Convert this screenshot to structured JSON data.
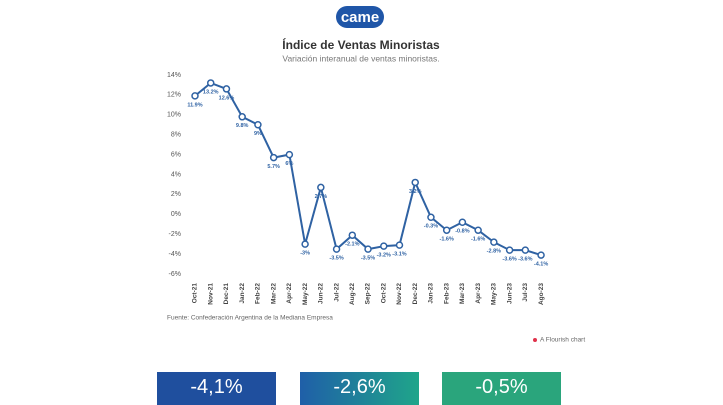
{
  "logo": "came",
  "chart_data": {
    "type": "line",
    "title": "Índice de Ventas Minoristas",
    "subtitle": "Variación interanual de ventas minoristas.",
    "source": "Fuente: Confederación Argentina de la Mediana Empresa",
    "credit": "A Flourish chart",
    "categories": [
      "Oct-21",
      "Nov-21",
      "Dec-21",
      "Jan-22",
      "Feb-22",
      "Mar-22",
      "Apr-22",
      "May-22",
      "Jun-22",
      "Jul-22",
      "Aug-22",
      "Sep-22",
      "Oct-22",
      "Nov-22",
      "Dec-22",
      "Jan-23",
      "Feb-23",
      "Mar-23",
      "Apr-23",
      "May-23",
      "Jun-23",
      "Jul-23",
      "Ago-23"
    ],
    "values": [
      11.9,
      13.2,
      12.6,
      9.8,
      9,
      5.7,
      6,
      -3,
      2.7,
      -3.5,
      -2.1,
      -3.5,
      -3.2,
      -3.1,
      3.2,
      -0.3,
      -1.6,
      -0.8,
      -1.6,
      -2.8,
      -3.6,
      -3.6,
      -4.1
    ],
    "value_labels": [
      "11.9%",
      "13.2%",
      "12.6%",
      "9.8%",
      "9%",
      "5.7%",
      "6%",
      "-3%",
      "2.7%",
      "-3.5%",
      "-2.1%",
      "-3.5%",
      "-3.2%",
      "-3.1%",
      "3.2%",
      "-0.3%",
      "-1.6%",
      "-0.8%",
      "-1.6%",
      "-2.8%",
      "-3.6%",
      "-3.6%",
      "-4.1%"
    ],
    "color": "#2f62a3",
    "ylim": [
      -6,
      14
    ],
    "yticks": [
      {
        "value": 14,
        "label": "14%"
      },
      {
        "value": 12,
        "label": "12%"
      },
      {
        "value": 10,
        "label": "10%"
      },
      {
        "value": 8,
        "label": "8%"
      },
      {
        "value": 6,
        "label": "6%"
      },
      {
        "value": 4,
        "label": "4%"
      },
      {
        "value": 2,
        "label": "2%"
      },
      {
        "value": 0,
        "label": "0%"
      },
      {
        "value": -2,
        "label": "-2%"
      },
      {
        "value": -4,
        "label": "-4%"
      },
      {
        "value": -6,
        "label": "-6%"
      }
    ],
    "grid": false
  },
  "cards": [
    "-4,1%",
    "-2,6%",
    "-0,5%"
  ]
}
